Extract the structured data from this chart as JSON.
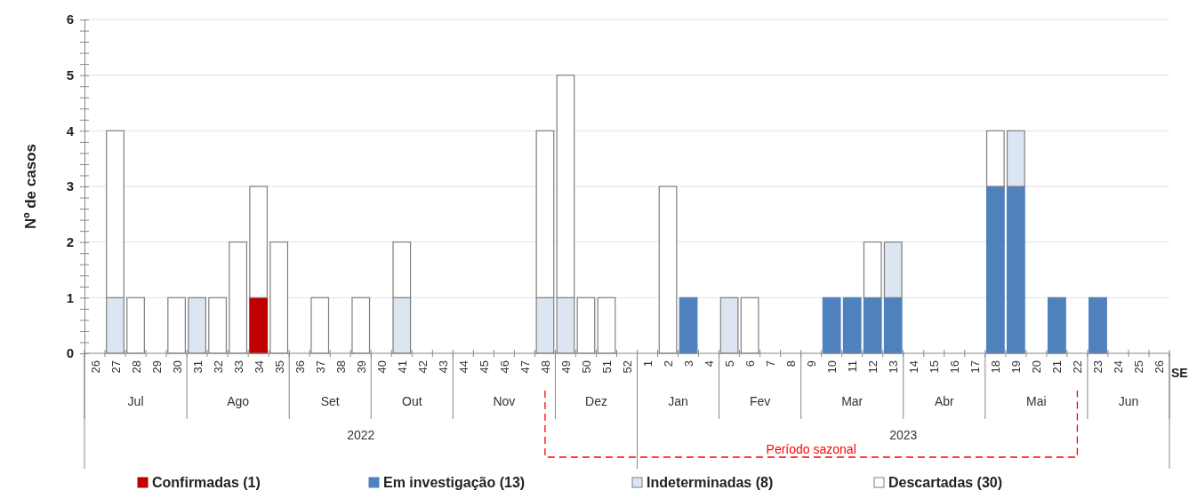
{
  "chart_data": {
    "type": "bar",
    "stacked": true,
    "ylabel": "Nº de casos",
    "categories": [
      "26",
      "27",
      "28",
      "29",
      "30",
      "31",
      "32",
      "33",
      "34",
      "35",
      "36",
      "37",
      "38",
      "39",
      "40",
      "41",
      "42",
      "43",
      "44",
      "45",
      "46",
      "47",
      "48",
      "49",
      "50",
      "51",
      "52",
      "1",
      "2",
      "3",
      "4",
      "5",
      "6",
      "7",
      "8",
      "9",
      "10",
      "11",
      "12",
      "13",
      "14",
      "15",
      "16",
      "17",
      "18",
      "19",
      "20",
      "21",
      "22",
      "23",
      "24",
      "25",
      "26"
    ],
    "series": [
      {
        "name": "Confirmadas (1)",
        "color": "#c00000",
        "values": [
          0,
          0,
          0,
          0,
          0,
          0,
          0,
          0,
          1,
          0,
          0,
          0,
          0,
          0,
          0,
          0,
          0,
          0,
          0,
          0,
          0,
          0,
          0,
          0,
          0,
          0,
          0,
          0,
          0,
          0,
          0,
          0,
          0,
          0,
          0,
          0,
          0,
          0,
          0,
          0,
          0,
          0,
          0,
          0,
          0,
          0,
          0,
          0,
          0,
          0,
          0,
          0,
          0
        ]
      },
      {
        "name": "Em investigação (13)",
        "color": "#4f81bd",
        "values": [
          0,
          0,
          0,
          0,
          0,
          0,
          0,
          0,
          0,
          0,
          0,
          0,
          0,
          0,
          0,
          0,
          0,
          0,
          0,
          0,
          0,
          0,
          0,
          0,
          0,
          0,
          0,
          0,
          0,
          1,
          0,
          0,
          0,
          0,
          0,
          0,
          1,
          1,
          1,
          1,
          0,
          0,
          0,
          0,
          3,
          3,
          0,
          1,
          0,
          1,
          0,
          0,
          0
        ]
      },
      {
        "name": "Indeterminadas (8)",
        "color": "#dce6f2",
        "values": [
          0,
          1,
          0,
          0,
          0,
          1,
          0,
          0,
          0,
          0,
          0,
          0,
          0,
          0,
          0,
          1,
          0,
          0,
          0,
          0,
          0,
          0,
          1,
          1,
          0,
          0,
          0,
          0,
          0,
          0,
          0,
          1,
          0,
          0,
          0,
          0,
          0,
          0,
          0,
          1,
          0,
          0,
          0,
          0,
          0,
          1,
          0,
          0,
          0,
          0,
          0,
          0,
          0
        ]
      },
      {
        "name": "Descartadas (30)",
        "color": "#ffffff",
        "values": [
          0,
          3,
          1,
          0,
          1,
          0,
          1,
          2,
          2,
          2,
          0,
          1,
          0,
          1,
          0,
          1,
          0,
          0,
          0,
          0,
          0,
          0,
          3,
          4,
          1,
          1,
          0,
          0,
          3,
          0,
          0,
          0,
          1,
          0,
          0,
          0,
          0,
          0,
          1,
          0,
          0,
          0,
          0,
          0,
          1,
          0,
          0,
          0,
          0,
          0,
          0,
          0,
          0
        ]
      }
    ],
    "ylim": [
      0,
      6
    ],
    "yticks": [
      0,
      {
        "value": 0.2,
        "label": null
      },
      {
        "value": 0.4,
        "label": null
      },
      {
        "value": 0.6,
        "label": null
      },
      {
        "value": 0.8,
        "label": null
      },
      1,
      {
        "value": 1.2,
        "label": null
      },
      {
        "value": 1.4,
        "label": null
      },
      {
        "value": 1.6,
        "label": null
      },
      {
        "value": 1.8,
        "label": null
      },
      2,
      {
        "value": 2.2,
        "label": null
      },
      {
        "value": 2.4,
        "label": null
      },
      {
        "value": 2.6,
        "label": null
      },
      {
        "value": 2.8,
        "label": null
      },
      3,
      {
        "value": 3.2,
        "label": null
      },
      {
        "value": 3.4,
        "label": null
      },
      {
        "value": 3.6,
        "label": null
      },
      {
        "value": 3.8,
        "label": null
      },
      4,
      {
        "value": 4.2,
        "label": null
      },
      {
        "value": 4.4,
        "label": null
      },
      {
        "value": 4.6,
        "label": null
      },
      {
        "value": 4.8,
        "label": null
      },
      5,
      {
        "value": 5.2,
        "label": null
      },
      {
        "value": 5.4,
        "label": null
      },
      {
        "value": 5.6,
        "label": null
      },
      {
        "value": 5.8,
        "label": null
      },
      6
    ],
    "grid": "y",
    "legend": "bottom",
    "annotations": [
      "Jul",
      "Ago",
      "Set",
      "Out",
      "Nov",
      "Dez",
      "Jan",
      "Fev",
      "Mar",
      "Abr",
      "Mai",
      "Jun",
      "2022",
      "2023",
      "Período sazonal",
      "SE"
    ]
  }
}
